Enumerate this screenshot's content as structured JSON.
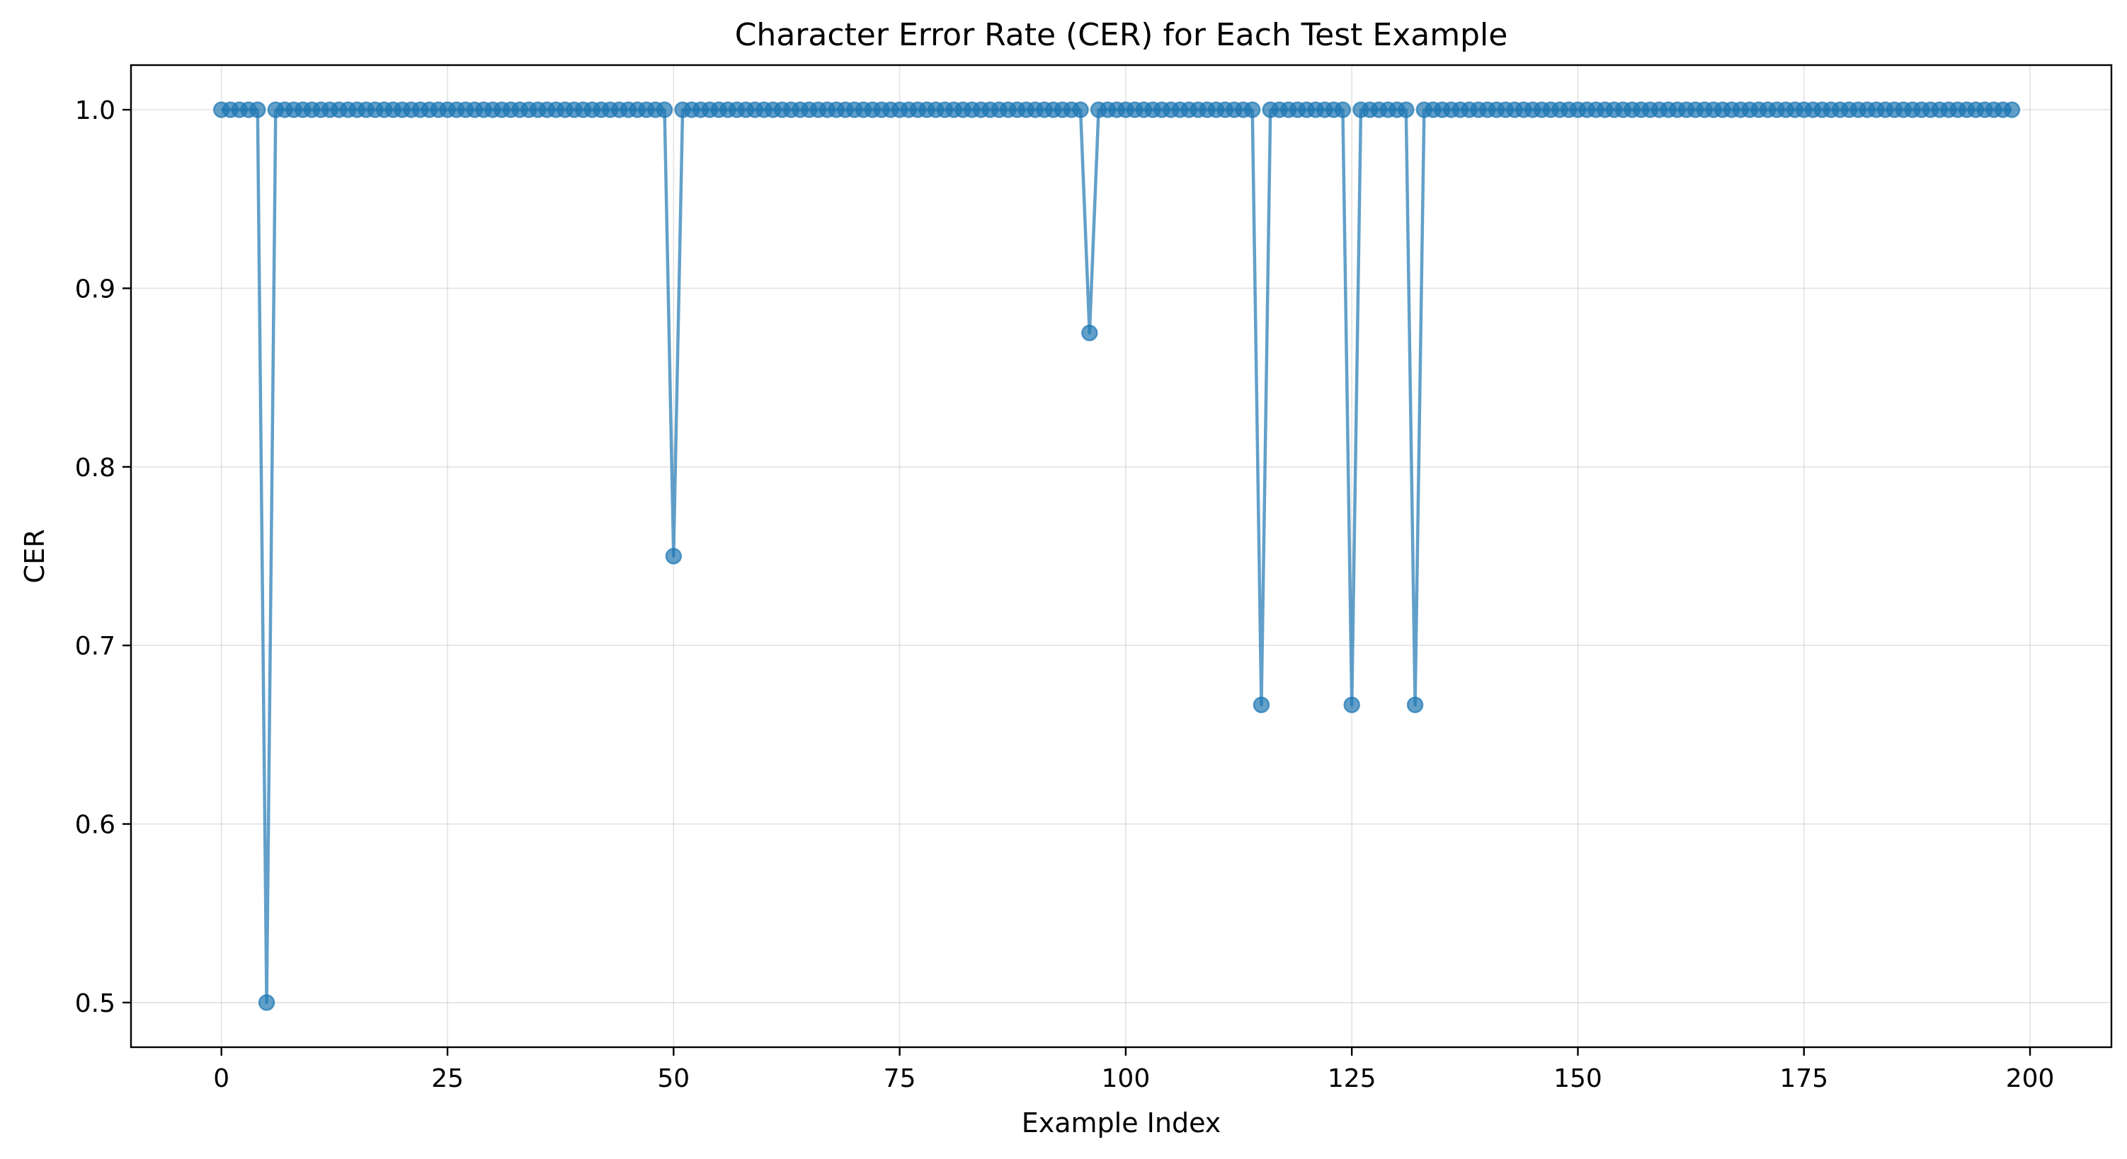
{
  "chart_data": {
    "type": "line",
    "title": "Character Error Rate (CER) for Each Test Example",
    "xlabel": "Example Index",
    "ylabel": "CER",
    "xlim": [
      -10,
      209
    ],
    "ylim": [
      0.475,
      1.025
    ],
    "xticks": [
      0,
      25,
      50,
      75,
      100,
      125,
      150,
      175,
      200
    ],
    "xtick_labels": [
      "0",
      "25",
      "50",
      "75",
      "100",
      "125",
      "150",
      "175",
      "200"
    ],
    "yticks": [
      0.5,
      0.6,
      0.7,
      0.8,
      0.9,
      1.0
    ],
    "ytick_labels": [
      "0.5",
      "0.6",
      "0.7",
      "0.8",
      "0.9",
      "1.0"
    ],
    "grid": true,
    "legend": "none",
    "color": "#1f77b4",
    "marker": "circle",
    "series": [
      {
        "x_start": 0,
        "x_end": 198,
        "default_value": 1.0,
        "exceptions": [
          {
            "x": 5,
            "y": 0.5
          },
          {
            "x": 50,
            "y": 0.75
          },
          {
            "x": 96,
            "y": 0.875
          },
          {
            "x": 115,
            "y": 0.6667
          },
          {
            "x": 125,
            "y": 0.6667
          },
          {
            "x": 132,
            "y": 0.6667
          }
        ]
      }
    ]
  }
}
